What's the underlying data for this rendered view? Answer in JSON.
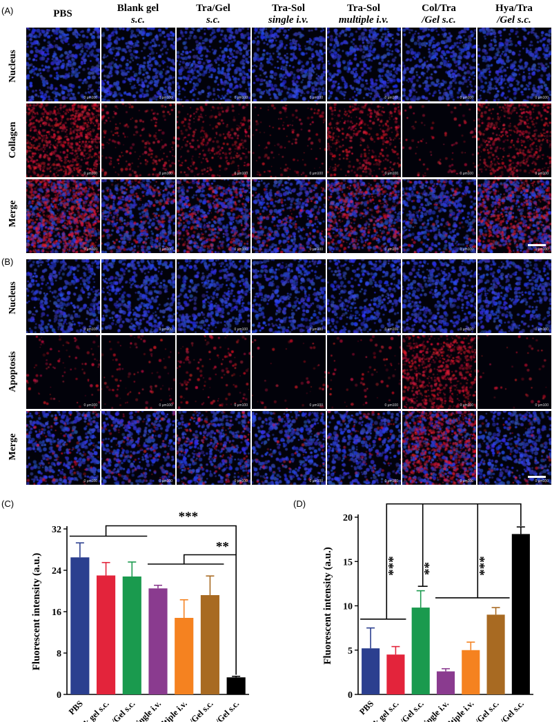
{
  "panels": {
    "A": "(A)",
    "B": "(B)",
    "C": "(C)",
    "D": "(D)"
  },
  "columns": [
    {
      "line1": "PBS",
      "line2": ""
    },
    {
      "line1": "Blank gel",
      "line2": "s.c."
    },
    {
      "line1": "Tra/Gel",
      "line2": "s.c."
    },
    {
      "line1": "Tra-Sol",
      "line2": "single i.v."
    },
    {
      "line1": "Tra-Sol",
      "line2": "multiple i.v."
    },
    {
      "line1": "Col/Tra",
      "line2": "/Gel s.c."
    },
    {
      "line1": "Hya/Tra",
      "line2": "/Gel s.c."
    }
  ],
  "rows_A": [
    "Nucleus",
    "Collagen",
    "Merge"
  ],
  "rows_B": [
    "Nucleus",
    "Apoptosis",
    "Merge"
  ],
  "scale_text": "0    μm100",
  "colors": {
    "nucleus": "#1c2a9c",
    "red_stain": "#c81428",
    "merge_purple": "#7a2a8a",
    "background": "#02020a"
  },
  "stain_levels": {
    "collagen": [
      0.9,
      0.25,
      0.35,
      0.15,
      0.45,
      0.1,
      0.55
    ],
    "apoptosis": [
      0.1,
      0.1,
      0.15,
      0.05,
      0.08,
      0.75,
      0.05
    ]
  },
  "chart_data": [
    {
      "type": "bar",
      "panel": "(C)",
      "ylabel": "Fluorescent intensity (a.u.)",
      "categories": [
        "PBS",
        "Blank gel s.c.",
        "Tra/Gel s.c.",
        "Tra-Sol single i.v.",
        "Tra-Sol multiple i.v.",
        "Hya/Tra/Gel s.c.",
        "Col/Tra/Gel s.c."
      ],
      "values": [
        26.5,
        23.0,
        22.8,
        20.5,
        14.8,
        19.2,
        3.3
      ],
      "errors": [
        2.8,
        2.5,
        2.8,
        0.6,
        3.5,
        3.7,
        0.2
      ],
      "colors": [
        "#2b3f8f",
        "#e3243b",
        "#1a9a4e",
        "#8a3b8f",
        "#f58220",
        "#a86a22",
        "#000000"
      ],
      "ylim": [
        0,
        32
      ],
      "yticks": [
        "0",
        "8",
        "16",
        "24",
        "32"
      ],
      "significance": [
        "***",
        "**"
      ]
    },
    {
      "type": "bar",
      "panel": "(D)",
      "ylabel": "Fluorescent intensity (a.u.)",
      "categories": [
        "PBS",
        "Blank gel s.c.",
        "Tra/Gel s.c.",
        "Tra-Sol single i.v.",
        "Tra-Sol multiple i.v.",
        "Hya/Tra/Gel s.c.",
        "Col/Tra/Gel s.c."
      ],
      "values": [
        5.2,
        4.5,
        9.8,
        2.6,
        5.0,
        9.0,
        18.1
      ],
      "errors": [
        2.3,
        0.9,
        1.9,
        0.3,
        0.9,
        0.8,
        0.8
      ],
      "colors": [
        "#2b3f8f",
        "#e3243b",
        "#1a9a4e",
        "#8a3b8f",
        "#f58220",
        "#a86a22",
        "#000000"
      ],
      "ylim": [
        0,
        20
      ],
      "yticks": [
        "0",
        "5",
        "10",
        "15",
        "20"
      ],
      "significance": [
        "***",
        "**",
        "***"
      ]
    }
  ]
}
